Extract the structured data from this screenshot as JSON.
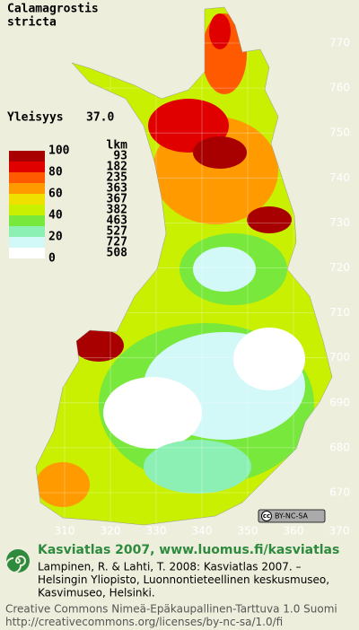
{
  "title": {
    "genus": "Calamagrostis",
    "species": "stricta"
  },
  "frequency": {
    "label": "Yleisyys",
    "value": "37.0"
  },
  "legend": {
    "count_header": "lkm",
    "scale_ticks": [
      100,
      80,
      60,
      40,
      20,
      0
    ],
    "classes": [
      {
        "color": "#a80000",
        "count": 93
      },
      {
        "color": "#e00000",
        "count": 182
      },
      {
        "color": "#ff5a00",
        "count": 235
      },
      {
        "color": "#ff9a00",
        "count": 363
      },
      {
        "color": "#f0e000",
        "count": 367
      },
      {
        "color": "#c8f000",
        "count": 382
      },
      {
        "color": "#78e83c",
        "count": 463
      },
      {
        "color": "#8cf0b4",
        "count": 527
      },
      {
        "color": "#d2f8f8",
        "count": 727
      },
      {
        "color": "#ffffff",
        "count": 508
      }
    ]
  },
  "grid": {
    "north": [
      770,
      760,
      750,
      740,
      730,
      720,
      710,
      700,
      690,
      680,
      670
    ],
    "east": [
      310,
      320,
      330,
      340,
      350,
      360,
      370
    ]
  },
  "badge": {
    "symbol": "cc",
    "text": "BY-NC-SA"
  },
  "footer": {
    "project": "Kasviatlas 2007, www.luomus.fi/kasviatlas",
    "citation": [
      "Lampinen, R. & Lahti, T. 2008: Kasviatlas 2007. –",
      "Helsingin Yliopisto, Luonnontieteellinen keskusmuseo,",
      "Kasvimuseo, Helsinki."
    ],
    "license": [
      "Creative Commons Nimeä-Epäkaupallinen-Tarttuva 1.0 Suomi",
      "http://creativecommons.org/licenses/by-nc-sa/1.0/fi"
    ]
  }
}
